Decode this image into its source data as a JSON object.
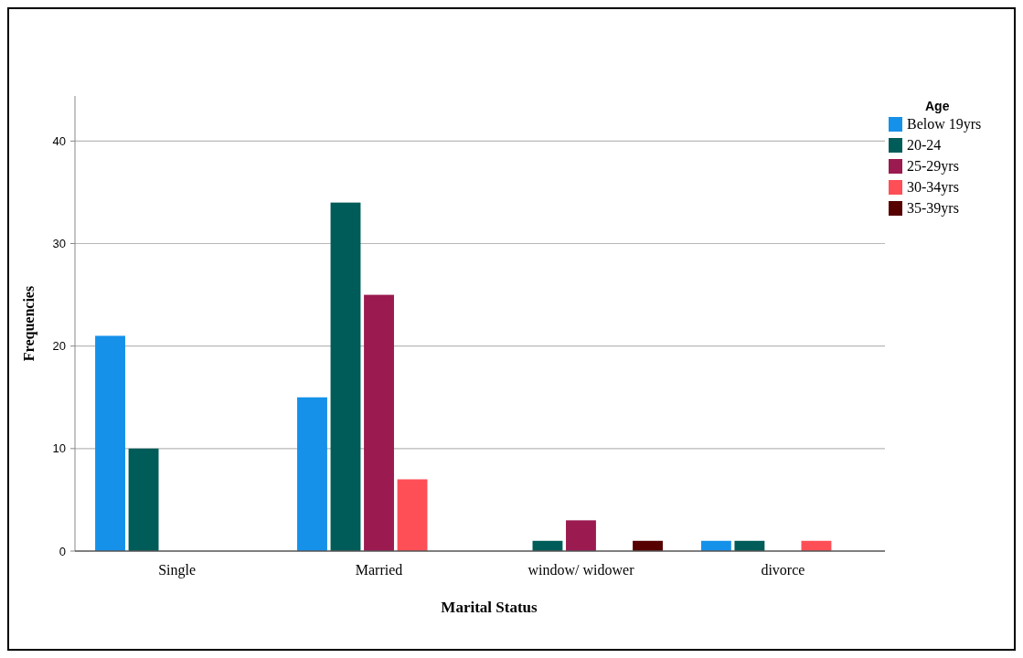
{
  "chart_data": {
    "type": "bar",
    "xlabel": "Marital Status",
    "ylabel": "Frequencies",
    "legend_title": "Age",
    "categories": [
      "Single",
      "Married",
      "window/ widower",
      "divorce"
    ],
    "series": [
      {
        "name": "Below 19yrs",
        "color": "#1591ea",
        "values": [
          21,
          15,
          null,
          1
        ]
      },
      {
        "name": "20-24",
        "color": "#005c58",
        "values": [
          10,
          34,
          1,
          1
        ]
      },
      {
        "name": "25-29yrs",
        "color": "#9b1a50",
        "values": [
          null,
          25,
          3,
          null
        ]
      },
      {
        "name": "30-34yrs",
        "color": "#fe4f57",
        "values": [
          null,
          7,
          null,
          1
        ]
      },
      {
        "name": "35-39yrs",
        "color": "#560000",
        "values": [
          null,
          null,
          1,
          null
        ]
      }
    ],
    "ylim": [
      0,
      44.4
    ],
    "yticks": [
      0,
      10,
      20,
      30,
      40
    ],
    "grid": "y",
    "legend": "top right"
  }
}
